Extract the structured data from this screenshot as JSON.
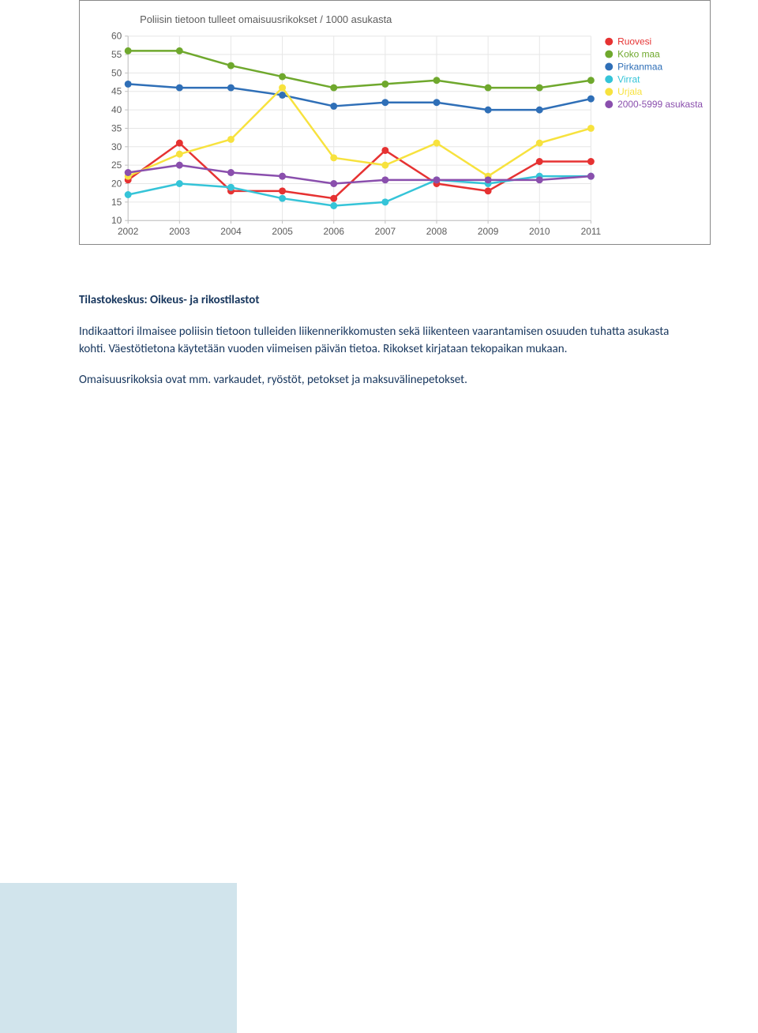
{
  "chart": {
    "title": "Poliisin tietoon tulleet omaisuusrikokset / 1000 asukasta",
    "title_color": "#5c5c5c",
    "title_fontsize": 13,
    "background_color": "#ffffff",
    "plot_background_color": "#ffffff",
    "grid_color": "#e6e6e6",
    "axis_color": "#bfbfbf",
    "axis_label_color": "#5c5c5c",
    "axis_label_fontsize": 12,
    "xlim": [
      2002,
      2011
    ],
    "ylim": [
      10,
      60
    ],
    "ytick_step": 5,
    "x_categories": [
      "2002",
      "2003",
      "2004",
      "2005",
      "2006",
      "2007",
      "2008",
      "2009",
      "2010",
      "2011"
    ],
    "yticks": [
      10,
      15,
      20,
      25,
      30,
      35,
      40,
      45,
      50,
      55,
      60
    ],
    "line_width": 2.5,
    "marker_radius": 4.5,
    "series": [
      {
        "name": "Ruovesi",
        "color": "#e63232",
        "values": [
          21,
          31,
          18,
          18,
          16,
          29,
          20,
          18,
          26,
          26
        ]
      },
      {
        "name": "Koko maa",
        "color": "#6fa82d",
        "values": [
          56,
          56,
          52,
          49,
          46,
          47,
          48,
          46,
          46,
          48
        ]
      },
      {
        "name": "Pirkanmaa",
        "color": "#2f6fb7",
        "values": [
          47,
          46,
          46,
          44,
          41,
          42,
          42,
          40,
          40,
          43
        ]
      },
      {
        "name": "Virrat",
        "color": "#35c4d8",
        "values": [
          17,
          20,
          19,
          16,
          14,
          15,
          21,
          20,
          22,
          22
        ]
      },
      {
        "name": "Urjala",
        "color": "#f7e23e",
        "values": [
          22,
          28,
          32,
          46,
          27,
          25,
          31,
          22,
          31,
          35
        ]
      },
      {
        "name": "2000-5999 asukasta",
        "color": "#8a4fad",
        "values": [
          23,
          25,
          23,
          22,
          20,
          21,
          21,
          21,
          21,
          22
        ]
      }
    ],
    "legend_fontsize": 12,
    "legend_position": "right"
  },
  "text": {
    "heading": "Tilastokeskus: Oikeus- ja rikostilastot",
    "para1": "Indikaattori ilmaisee poliisin tietoon tulleiden liikennerikkomusten sekä liikenteen vaarantamisen osuuden tuhatta asukasta kohti. Väestötietona käytetään vuoden viimeisen päivän tietoa. Rikokset kirjataan tekopaikan mukaan.",
    "para2": "Omaisuusrikoksia ovat mm. varkaudet, ryöstöt, petokset ja maksuvälinepetokset."
  },
  "footer_block_color": "#d1e4ec",
  "heading_color": "#17365d",
  "body_color": "#17365d"
}
